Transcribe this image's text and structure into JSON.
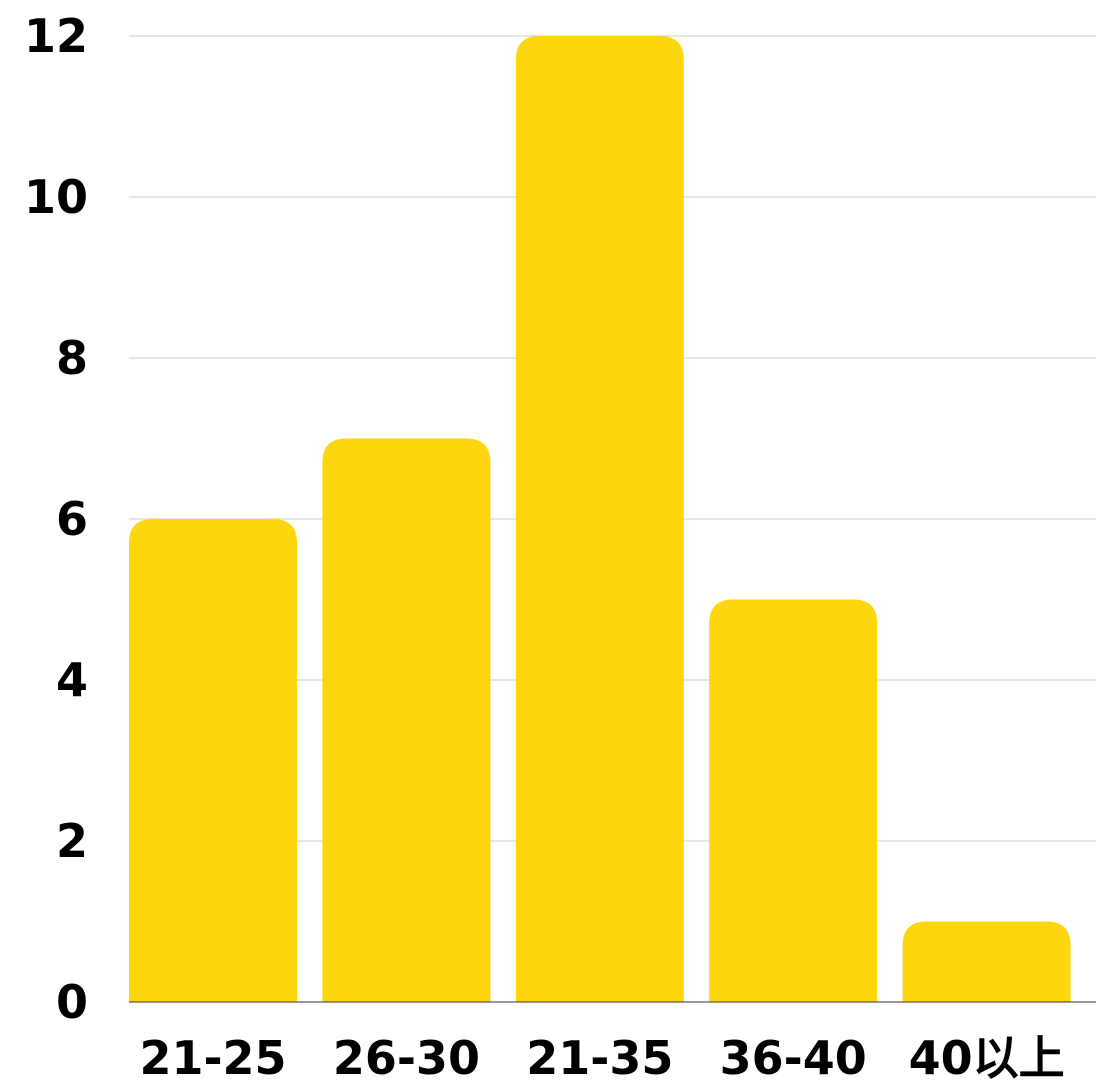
{
  "chart_data": {
    "type": "bar",
    "categories": [
      "21-25",
      "26-30",
      "21-35",
      "36-40",
      "40以上"
    ],
    "values": [
      6,
      7,
      12,
      5,
      1
    ],
    "title": "",
    "xlabel": "",
    "ylabel": "",
    "ylim": [
      0,
      12
    ],
    "yticks": [
      "0",
      "2",
      "4",
      "6",
      "8",
      "10",
      "12"
    ],
    "grid": true,
    "legend": "none",
    "colors": {
      "bar": "#FDD60D",
      "grid": "#CCCCCC",
      "axis": "#333333",
      "text": "#000000"
    }
  }
}
